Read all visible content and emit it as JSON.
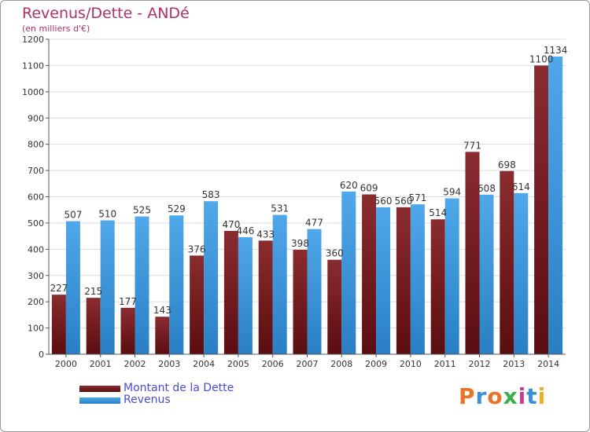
{
  "header": {
    "title": "Revenus/Dette - ANDé",
    "subtitle": "(en milliers d'€)"
  },
  "legend": {
    "dette_label": "Montant de la Dette",
    "revenus_label": "Revenus"
  },
  "logo": {
    "text": "Proxiti",
    "colors": [
      "#e8732a",
      "#3a8fd6",
      "#e8732a",
      "#3ab04a",
      "#d63a8f",
      "#3a8fd6",
      "#e8b02a"
    ]
  },
  "colors": {
    "dette": "#7a1a1f",
    "revenus": "#3d9ae0",
    "title": "#b0306a",
    "legend_text": "#4a4ad0"
  },
  "chart_data": {
    "type": "bar",
    "title": "Revenus/Dette - ANDé",
    "ylabel": "(en milliers d'€)",
    "categories": [
      "2000",
      "2001",
      "2002",
      "2003",
      "2004",
      "2005",
      "2006",
      "2007",
      "2008",
      "2009",
      "2010",
      "2011",
      "2012",
      "2013",
      "2014"
    ],
    "series": [
      {
        "name": "Montant de la Dette",
        "values": [
          227,
          215,
          177,
          143,
          376,
          470,
          433,
          398,
          360,
          609,
          560,
          514,
          771,
          698,
          1100
        ]
      },
      {
        "name": "Revenus",
        "values": [
          507,
          510,
          525,
          529,
          583,
          446,
          531,
          477,
          620,
          560,
          571,
          594,
          608,
          614,
          1134
        ]
      }
    ],
    "ylim": [
      0,
      1200
    ],
    "yticks": [
      0,
      100,
      200,
      300,
      400,
      500,
      600,
      700,
      800,
      900,
      1000,
      1100,
      1200
    ],
    "grid": true,
    "legend": "bottom-left"
  }
}
